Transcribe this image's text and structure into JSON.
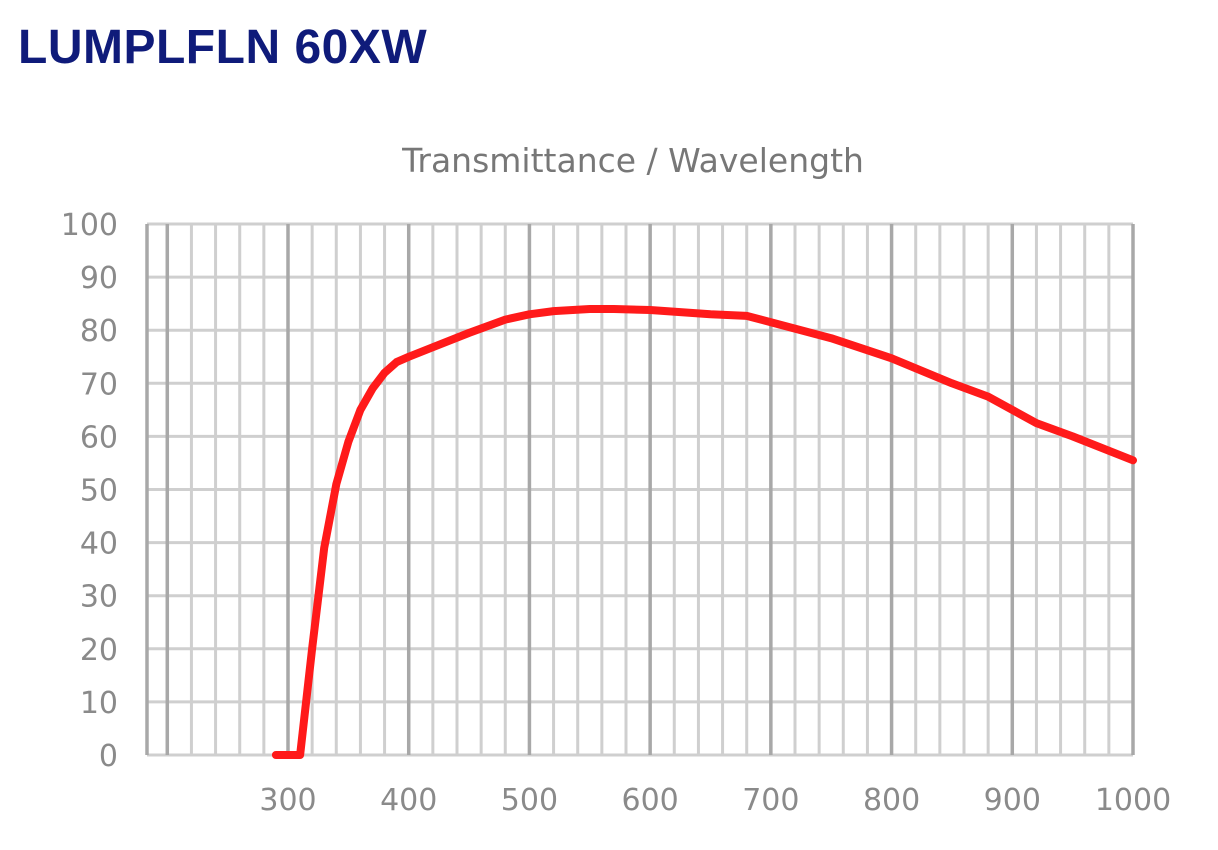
{
  "header": {
    "title": "LUMPLFLN 60XW"
  },
  "chart_data": {
    "type": "line",
    "title": "Transmittance / Wavelength",
    "xlabel": "",
    "ylabel": "",
    "xlim": [
      300,
      1000
    ],
    "ylim": [
      0,
      100
    ],
    "x_ticks": [
      300,
      400,
      500,
      600,
      700,
      800,
      900,
      1000
    ],
    "y_ticks": [
      0,
      10,
      20,
      30,
      40,
      50,
      60,
      70,
      80,
      90,
      100
    ],
    "grid": true,
    "colors": {
      "line": "#ff1a1a",
      "grid": "#cfcfcf",
      "grid_major": "#a8a8a8",
      "title": "#0f1b7a"
    },
    "series": [
      {
        "x": [
          290,
          305,
          310,
          320,
          330,
          340,
          350,
          360,
          370,
          380,
          390,
          400,
          420,
          450,
          480,
          500,
          520,
          550,
          570,
          600,
          650,
          680,
          700,
          750,
          800,
          850,
          880,
          900,
          920,
          950,
          1000
        ],
        "y": [
          0,
          0,
          0,
          20,
          39,
          51,
          59,
          65,
          69,
          72,
          74,
          75,
          76.8,
          79.5,
          82,
          83,
          83.6,
          84,
          84,
          83.8,
          83,
          82.7,
          81.5,
          78.5,
          74.7,
          70,
          67.5,
          65,
          62.5,
          60,
          55.5
        ]
      }
    ]
  }
}
